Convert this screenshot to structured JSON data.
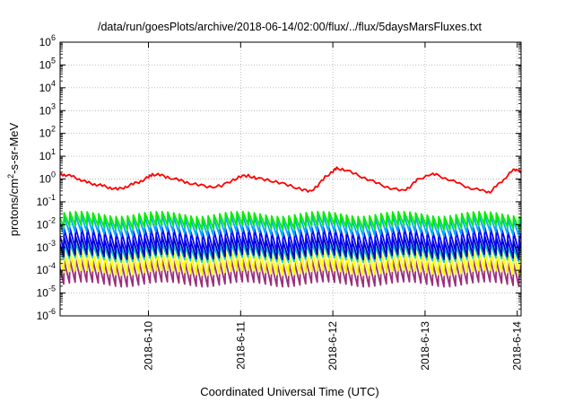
{
  "chart_data": {
    "type": "line",
    "title": "/data/run/goesPlots/archive/2018-06-14/02:00/flux/../flux/5daysMarsFluxes.txt",
    "xlabel": "Coordinated Universal Time (UTC)",
    "ylabel": {
      "base": "protons/cm",
      "sup": "2",
      "rest": "-s-sr-MeV"
    },
    "y_scale": "log",
    "ylim": [
      1e-06,
      1000000.0
    ],
    "xlim": [
      "2018-06-09T01:00",
      "2018-06-14T01:00"
    ],
    "grid": true,
    "legend": "none",
    "x_ticks": [
      "2018-6-10",
      "2018-6-11",
      "2018-6-12",
      "2018-6-13",
      "2018-6-14"
    ],
    "y_ticks": [
      {
        "base": "10",
        "exp": "-6"
      },
      {
        "base": "10",
        "exp": "-5"
      },
      {
        "base": "10",
        "exp": "-4"
      },
      {
        "base": "10",
        "exp": "-3"
      },
      {
        "base": "10",
        "exp": "-2"
      },
      {
        "base": "10",
        "exp": "-1"
      },
      {
        "base": "10",
        "exp": "0"
      },
      {
        "base": "10",
        "exp": "1"
      },
      {
        "base": "10",
        "exp": "2"
      },
      {
        "base": "10",
        "exp": "3"
      },
      {
        "base": "10",
        "exp": "4"
      },
      {
        "base": "10",
        "exp": "5"
      },
      {
        "base": "10",
        "exp": "6"
      }
    ],
    "period_hours": 1.5,
    "series": [
      {
        "color": "#ff0000",
        "kind": "irregular",
        "points": [
          [
            "2018-06-09T01:00",
            1.5
          ],
          [
            "2018-06-09T02:00",
            1.6
          ],
          [
            "2018-06-09T04:00",
            1.3
          ],
          [
            "2018-06-09T06:00",
            1.0
          ],
          [
            "2018-06-09T08:00",
            0.7
          ],
          [
            "2018-06-09T10:00",
            0.6
          ],
          [
            "2018-06-09T12:00",
            0.5
          ],
          [
            "2018-06-09T14:00",
            0.42
          ],
          [
            "2018-06-09T16:00",
            0.35
          ],
          [
            "2018-06-09T18:00",
            0.45
          ],
          [
            "2018-06-09T20:00",
            0.6
          ],
          [
            "2018-06-09T22:00",
            0.8
          ],
          [
            "2018-06-10T00:00",
            1.2
          ],
          [
            "2018-06-10T01:00",
            1.6
          ],
          [
            "2018-06-10T03:00",
            1.5
          ],
          [
            "2018-06-10T05:00",
            1.2
          ],
          [
            "2018-06-10T08:00",
            0.9
          ],
          [
            "2018-06-10T10:00",
            0.7
          ],
          [
            "2018-06-10T13:00",
            0.55
          ],
          [
            "2018-06-10T16:00",
            0.45
          ],
          [
            "2018-06-10T19:00",
            0.5
          ],
          [
            "2018-06-10T22:00",
            0.9
          ],
          [
            "2018-06-11T00:00",
            1.3
          ],
          [
            "2018-06-11T02:00",
            1.4
          ],
          [
            "2018-06-11T04:00",
            1.1
          ],
          [
            "2018-06-11T07:00",
            0.9
          ],
          [
            "2018-06-11T10:00",
            0.7
          ],
          [
            "2018-06-11T13:00",
            0.5
          ],
          [
            "2018-06-11T16:00",
            0.35
          ],
          [
            "2018-06-11T18:00",
            0.28
          ],
          [
            "2018-06-11T20:00",
            0.5
          ],
          [
            "2018-06-11T22:00",
            1.2
          ],
          [
            "2018-06-12T00:00",
            2.2
          ],
          [
            "2018-06-12T01:00",
            2.9
          ],
          [
            "2018-06-12T03:00",
            2.6
          ],
          [
            "2018-06-12T06:00",
            1.6
          ],
          [
            "2018-06-12T09:00",
            1.0
          ],
          [
            "2018-06-12T12:00",
            0.6
          ],
          [
            "2018-06-12T15:00",
            0.4
          ],
          [
            "2018-06-12T18:00",
            0.3
          ],
          [
            "2018-06-12T20:00",
            0.45
          ],
          [
            "2018-06-12T22:00",
            0.9
          ],
          [
            "2018-06-13T01:00",
            1.6
          ],
          [
            "2018-06-13T03:00",
            1.5
          ],
          [
            "2018-06-13T06:00",
            1.0
          ],
          [
            "2018-06-13T09:00",
            0.6
          ],
          [
            "2018-06-13T12:00",
            0.4
          ],
          [
            "2018-06-13T15:00",
            0.3
          ],
          [
            "2018-06-13T17:00",
            0.28
          ],
          [
            "2018-06-13T19:00",
            0.55
          ],
          [
            "2018-06-13T21:00",
            1.2
          ],
          [
            "2018-06-13T23:00",
            2.4
          ],
          [
            "2018-06-14T00:00",
            2.8
          ],
          [
            "2018-06-14T01:00",
            1.8
          ]
        ]
      },
      {
        "color": "#00ee00",
        "kind": "sawtooth",
        "low": 0.008,
        "high": 0.03
      },
      {
        "color": "#00aaff",
        "kind": "sawtooth",
        "low": 0.004,
        "high": 0.02
      },
      {
        "color": "#0000ff",
        "kind": "sawtooth",
        "low": 0.0008,
        "high": 0.006
      },
      {
        "color": "#0000aa",
        "kind": "sawtooth",
        "low": 0.0004,
        "high": 0.0025
      },
      {
        "color": "#00cccc",
        "kind": "sawtooth",
        "low": 0.0003,
        "high": 0.0012
      },
      {
        "color": "#ffff00",
        "kind": "sawtooth",
        "low": 8e-05,
        "high": 0.0006
      },
      {
        "color": "#9b2f7a",
        "kind": "sawtooth",
        "low": 2.5e-05,
        "high": 0.00025
      }
    ]
  }
}
